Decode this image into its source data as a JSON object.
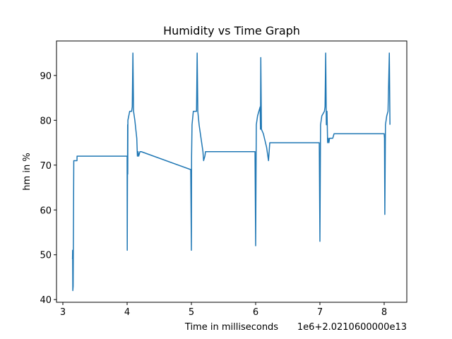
{
  "chart_data": {
    "type": "line",
    "title": "Humidity vs Time Graph",
    "xlabel": "Time in milliseconds",
    "ylabel": "hm in %",
    "offset_text": "1e6+2.0210600000e13",
    "color": "#1f77b4",
    "x": [
      20210603150000,
      20210603152000,
      20210603155000,
      20210603160000,
      20210603170000,
      20210603220000,
      20210603221000,
      20210604000000,
      20210604002000,
      20210604008000,
      20210604010000,
      20210604012000,
      20210604040000,
      20210604070000,
      20210604080000,
      20210604090000,
      20210604100000,
      20210604120000,
      20210604150000,
      20210604160000,
      20210604170000,
      20210604180000,
      20210604200000,
      20210604220000,
      20210604990000,
      20210605000000,
      20210605003000,
      20210605010000,
      20210605030000,
      20210605080000,
      20210605090000,
      20210605100000,
      20210605120000,
      20210605150000,
      20210605180000,
      20210605190000,
      20210605210000,
      20210605220000,
      20210605990000,
      20210606000000,
      20210606010000,
      20210606030000,
      20210606070000,
      20210606075000,
      20210606080000,
      20210606090000,
      20210606120000,
      20210606170000,
      20210606190000,
      20210606200000,
      20210606210000,
      20210606220000,
      20210606990000,
      20210607000000,
      20210607010000,
      20210607030000,
      20210607070000,
      20210607080000,
      20210607090000,
      20210607100000,
      20210607110000,
      20210607120000,
      20210607130000,
      20210607140000,
      20210607150000,
      20210607200000,
      20210607220000,
      20210608000000,
      20210608005000,
      20210608010000,
      20210608020000,
      20210608040000,
      20210608060000,
      20210608080000,
      20210608090000
    ],
    "values": [
      49,
      51,
      42,
      43,
      71,
      71,
      72,
      72,
      51,
      79,
      68,
      80,
      82,
      82,
      83,
      95,
      82,
      80,
      76,
      72,
      73,
      72,
      73,
      73,
      69,
      51,
      72,
      79,
      82,
      82,
      95,
      82,
      79,
      76,
      73,
      71,
      72,
      73,
      73,
      52,
      79,
      81,
      83,
      78,
      94,
      78,
      77,
      74,
      72,
      71,
      73,
      75,
      75,
      53,
      79,
      81,
      82,
      83,
      95,
      79,
      82,
      75,
      76,
      75,
      76,
      76,
      77,
      77,
      76,
      59,
      79,
      81,
      82,
      95,
      79
    ],
    "xlim": [
      20210602901000,
      20210608352000
    ],
    "ylim": [
      39.4,
      97.7
    ],
    "xticks": [
      {
        "value": 20210603000000,
        "label": "3"
      },
      {
        "value": 20210604000000,
        "label": "4"
      },
      {
        "value": 20210605000000,
        "label": "5"
      },
      {
        "value": 20210606000000,
        "label": "6"
      },
      {
        "value": 20210607000000,
        "label": "7"
      },
      {
        "value": 20210608000000,
        "label": "8"
      }
    ],
    "yticks": [
      40,
      50,
      60,
      70,
      80,
      90
    ]
  }
}
